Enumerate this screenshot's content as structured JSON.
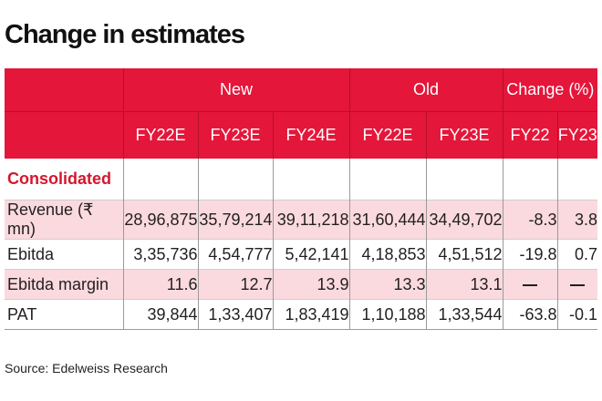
{
  "title": "Change in estimates",
  "groups": {
    "new": "New",
    "old": "Old",
    "change": "Change (%)"
  },
  "columns": [
    "FY22E",
    "FY23E",
    "FY24E",
    "FY22E",
    "FY23E",
    "FY22",
    "FY23"
  ],
  "section": "Consolidated",
  "rows": [
    {
      "label": "Revenue (₹ mn)",
      "values": [
        "28,96,875",
        "35,79,214",
        "39,11,218",
        "31,60,444",
        "34,49,702",
        "-8.3",
        "3.8"
      ]
    },
    {
      "label": "Ebitda",
      "values": [
        "3,35,736",
        "4,54,777",
        "5,42,141",
        "4,18,853",
        "4,51,512",
        "-19.8",
        "0.7"
      ]
    },
    {
      "label": "Ebitda margin",
      "values": [
        "11.6",
        "12.7",
        "13.9",
        "13.3",
        "13.1",
        "",
        ""
      ]
    },
    {
      "label": "PAT",
      "values": [
        "39,844",
        "1,33,407",
        "1,83,419",
        "1,10,188",
        "1,33,544",
        "-63.8",
        "-0.1"
      ]
    }
  ],
  "source": "Source: Edelweiss Research",
  "colors": {
    "header_red": "#e4163a",
    "section_red": "#d3172e",
    "row_pink": "#fadadf"
  }
}
